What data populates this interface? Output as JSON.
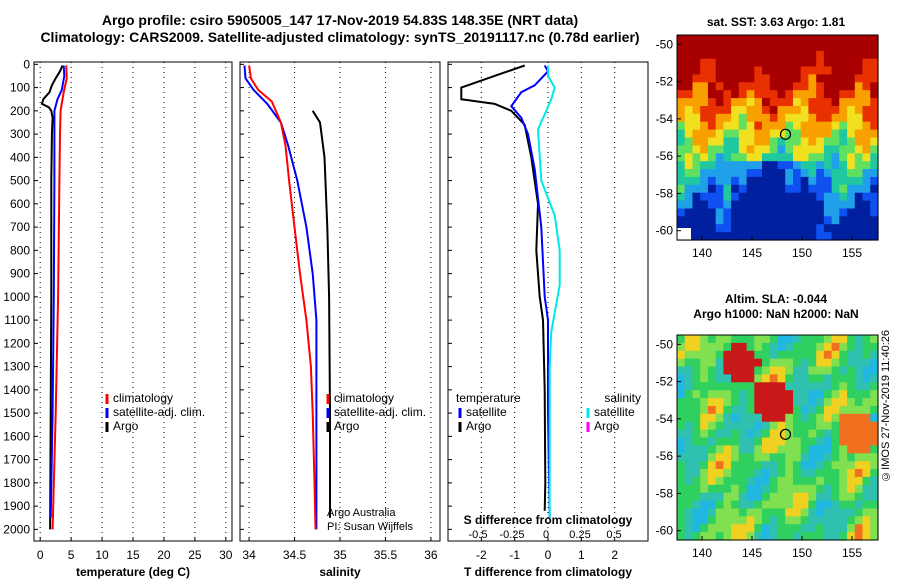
{
  "header": {
    "line1": "Argo profile: csiro 5905005_147 17-Nov-2019 54.83S 148.35E (NRT data)",
    "line2": "Climatology: CARS2009. Satellite-adjusted climatology: synTS_20191117.nc (0.78d earlier)"
  },
  "credit": "©IMOS 27-Nov-2019 11:40:26",
  "colors": {
    "climatology": "#ff0000",
    "satellite": "#0000ff",
    "argo": "#000000",
    "salinity_satellite": "#00e8e8",
    "salinity_argo": "#ff00ff",
    "map_marker": "#000000"
  },
  "chart_data": [
    {
      "type": "line",
      "id": "temperature",
      "xlabel": "temperature (deg C)",
      "xlim": [
        -1,
        31
      ],
      "xticks": [
        "0",
        "5",
        "10",
        "15",
        "20",
        "25",
        "30"
      ],
      "ylim": [
        2050,
        0
      ],
      "yticks": [
        "0",
        "100",
        "200",
        "300",
        "400",
        "500",
        "600",
        "700",
        "800",
        "900",
        "1000",
        "1100",
        "1200",
        "1300",
        "1400",
        "1500",
        "1600",
        "1700",
        "1800",
        "1900",
        "2000"
      ],
      "legend": [
        "climatology",
        "satellite-adj. clim.",
        "Argo"
      ],
      "series": [
        {
          "name": "Argo",
          "color": "#000000",
          "points": [
            [
              3.6,
              5
            ],
            [
              3.2,
              30
            ],
            [
              2.5,
              60
            ],
            [
              1.9,
              90
            ],
            [
              1.5,
              120
            ],
            [
              0.5,
              150
            ],
            [
              0.3,
              170
            ],
            [
              1.4,
              185
            ],
            [
              1.8,
              200
            ],
            [
              2.0,
              230
            ],
            [
              1.9,
              300
            ],
            [
              1.8,
              500
            ],
            [
              1.8,
              1000
            ],
            [
              1.7,
              1500
            ],
            [
              1.6,
              2000
            ]
          ]
        },
        {
          "name": "satellite-adj. clim.",
          "color": "#0000ff",
          "points": [
            [
              3.8,
              5
            ],
            [
              3.9,
              50
            ],
            [
              3.5,
              110
            ],
            [
              2.8,
              150
            ],
            [
              2.3,
              200
            ],
            [
              2.3,
              300
            ],
            [
              2.3,
              500
            ],
            [
              2.2,
              1000
            ],
            [
              2.0,
              1500
            ],
            [
              1.7,
              1950
            ]
          ]
        },
        {
          "name": "climatology",
          "color": "#ff0000",
          "points": [
            [
              4.2,
              5
            ],
            [
              4.3,
              60
            ],
            [
              3.8,
              120
            ],
            [
              3.3,
              200
            ],
            [
              3.2,
              300
            ],
            [
              3.1,
              500
            ],
            [
              2.9,
              1000
            ],
            [
              2.5,
              1500
            ],
            [
              2.0,
              2000
            ]
          ]
        }
      ]
    },
    {
      "type": "line",
      "id": "salinity",
      "xlabel": "salinity",
      "xlim": [
        33.9,
        36.1
      ],
      "xticks": [
        "34",
        "34.5",
        "35",
        "35.5",
        "36"
      ],
      "ylim": [
        2050,
        0
      ],
      "legend": [
        "climatology",
        "satellite-adj. clim.",
        "Argo"
      ],
      "annotations": [
        "Argo Australia",
        "PI: Susan Wijffels"
      ],
      "series": [
        {
          "name": "Argo",
          "color": "#000000",
          "points": [
            [
              34.7,
              200
            ],
            [
              34.78,
              250
            ],
            [
              34.83,
              400
            ],
            [
              34.86,
              700
            ],
            [
              34.88,
              1000
            ],
            [
              34.89,
              1500
            ],
            [
              34.89,
              1950
            ]
          ]
        },
        {
          "name": "satellite-adj. clim.",
          "color": "#0000ff",
          "points": [
            [
              33.95,
              5
            ],
            [
              33.96,
              60
            ],
            [
              34.05,
              110
            ],
            [
              34.2,
              170
            ],
            [
              34.35,
              250
            ],
            [
              34.43,
              350
            ],
            [
              34.53,
              500
            ],
            [
              34.63,
              700
            ],
            [
              34.7,
              900
            ],
            [
              34.74,
              1100
            ],
            [
              34.74,
              1300
            ],
            [
              34.74,
              1500
            ],
            [
              34.74,
              2000
            ]
          ]
        },
        {
          "name": "climatology",
          "color": "#ff0000",
          "points": [
            [
              34.0,
              5
            ],
            [
              34.02,
              60
            ],
            [
              34.1,
              110
            ],
            [
              34.25,
              160
            ],
            [
              34.35,
              250
            ],
            [
              34.4,
              350
            ],
            [
              34.44,
              500
            ],
            [
              34.5,
              700
            ],
            [
              34.56,
              900
            ],
            [
              34.63,
              1100
            ],
            [
              34.68,
              1300
            ],
            [
              34.7,
              1500
            ],
            [
              34.72,
              1800
            ],
            [
              34.73,
              2000
            ]
          ]
        }
      ]
    },
    {
      "type": "line",
      "id": "difference",
      "xlabel": "T difference from climatology",
      "xlabel_top": "S difference from climatology",
      "xlim": [
        -3,
        3
      ],
      "xticks": [
        "-2",
        "-1",
        "0",
        "1",
        "2"
      ],
      "xticks_top": [
        "-0.5",
        "-0.25",
        "0",
        "0.25",
        "0.5"
      ],
      "ylim": [
        2050,
        0
      ],
      "legend_left_title": "temperature",
      "legend_left": [
        "satellite",
        "Argo"
      ],
      "legend_right_title": "salinity",
      "legend_right": [
        "satellite",
        "Argo"
      ],
      "series": [
        {
          "name": "T Argo",
          "color": "#000000",
          "points": [
            [
              -0.7,
              5
            ],
            [
              -1.4,
              40
            ],
            [
              -2.6,
              100
            ],
            [
              -2.6,
              150
            ],
            [
              -1.6,
              170
            ],
            [
              -1.1,
              200
            ],
            [
              -0.7,
              260
            ],
            [
              -0.5,
              400
            ],
            [
              -0.3,
              600
            ],
            [
              -0.35,
              800
            ],
            [
              -0.25,
              1000
            ],
            [
              -0.15,
              1100
            ],
            [
              -0.1,
              1400
            ],
            [
              -0.08,
              1800
            ],
            [
              -0.1,
              1920
            ]
          ]
        },
        {
          "name": "T satellite",
          "color": "#0000ff",
          "points": [
            [
              -0.1,
              5
            ],
            [
              0.0,
              30
            ],
            [
              -0.4,
              90
            ],
            [
              -0.8,
              120
            ],
            [
              -1.1,
              180
            ],
            [
              -0.8,
              230
            ],
            [
              -0.6,
              300
            ],
            [
              -0.4,
              450
            ],
            [
              -0.2,
              700
            ],
            [
              -0.1,
              1000
            ],
            [
              0.0,
              1100
            ],
            [
              0.0,
              1500
            ],
            [
              0.05,
              1950
            ]
          ]
        },
        {
          "name": "S satellite",
          "color": "#00e8e8",
          "points": [
            [
              0.0,
              5
            ],
            [
              0.0,
              50
            ],
            [
              0.2,
              100
            ],
            [
              0.1,
              150
            ],
            [
              -0.05,
              200
            ],
            [
              -0.3,
              280
            ],
            [
              -0.2,
              500
            ],
            [
              0.2,
              650
            ],
            [
              0.35,
              800
            ],
            [
              0.35,
              950
            ],
            [
              0.1,
              1150
            ],
            [
              0.05,
              1300
            ],
            [
              0.05,
              1600
            ],
            [
              0.05,
              1950
            ]
          ]
        }
      ]
    },
    {
      "type": "heatmap",
      "id": "sst_map",
      "title": "sat. SST: 3.63 Argo: 1.81",
      "xticks": [
        "140",
        "145",
        "150",
        "155"
      ],
      "yticks": [
        "-50",
        "-52",
        "-54",
        "-56",
        "-58",
        "-60"
      ],
      "marker": [
        148.35,
        -54.83
      ]
    },
    {
      "type": "heatmap",
      "id": "sla_map",
      "title": "Altim. SLA: -0.044",
      "subtitle": "Argo h1000: NaN h2000: NaN",
      "xticks": [
        "140",
        "145",
        "150",
        "155"
      ],
      "yticks": [
        "-50",
        "-52",
        "-54",
        "-56",
        "-58",
        "-60"
      ],
      "marker": [
        148.35,
        -54.83
      ]
    }
  ]
}
